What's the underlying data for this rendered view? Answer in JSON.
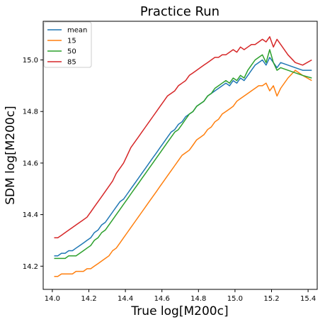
{
  "chart_data": {
    "type": "line",
    "title": "Practice Run",
    "xlabel": "True log[M200c]",
    "ylabel": "SDM log[M200c]",
    "xlim": [
      13.95,
      15.45
    ],
    "ylim": [
      14.11,
      15.15
    ],
    "xticks": [
      14.0,
      14.2,
      14.4,
      14.6,
      14.8,
      15.0,
      15.2,
      15.4
    ],
    "xtick_labels": [
      "14.0",
      "14.2",
      "14.4",
      "14.6",
      "14.8",
      "15.0",
      "15.2",
      "15.4"
    ],
    "yticks": [
      14.2,
      14.4,
      14.6,
      14.8,
      15.0
    ],
    "ytick_labels": [
      "14.2",
      "14.4",
      "14.6",
      "14.8",
      "15.0"
    ],
    "grid": false,
    "legend_position": "top-left",
    "series": [
      {
        "name": "mean",
        "color": "#1f77b4",
        "points": [
          [
            14.01,
            14.24
          ],
          [
            14.03,
            14.24
          ],
          [
            14.05,
            14.25
          ],
          [
            14.07,
            14.25
          ],
          [
            14.09,
            14.26
          ],
          [
            14.11,
            14.26
          ],
          [
            14.13,
            14.27
          ],
          [
            14.15,
            14.28
          ],
          [
            14.17,
            14.29
          ],
          [
            14.19,
            14.3
          ],
          [
            14.21,
            14.31
          ],
          [
            14.23,
            14.33
          ],
          [
            14.25,
            14.34
          ],
          [
            14.27,
            14.36
          ],
          [
            14.29,
            14.37
          ],
          [
            14.31,
            14.39
          ],
          [
            14.33,
            14.41
          ],
          [
            14.35,
            14.43
          ],
          [
            14.37,
            14.45
          ],
          [
            14.39,
            14.46
          ],
          [
            14.41,
            14.48
          ],
          [
            14.43,
            14.5
          ],
          [
            14.45,
            14.52
          ],
          [
            14.47,
            14.54
          ],
          [
            14.49,
            14.56
          ],
          [
            14.51,
            14.58
          ],
          [
            14.53,
            14.6
          ],
          [
            14.55,
            14.62
          ],
          [
            14.57,
            14.64
          ],
          [
            14.59,
            14.66
          ],
          [
            14.61,
            14.68
          ],
          [
            14.63,
            14.7
          ],
          [
            14.65,
            14.72
          ],
          [
            14.67,
            14.73
          ],
          [
            14.69,
            14.75
          ],
          [
            14.71,
            14.76
          ],
          [
            14.73,
            14.78
          ],
          [
            14.75,
            14.79
          ],
          [
            14.77,
            14.8
          ],
          [
            14.79,
            14.82
          ],
          [
            14.81,
            14.83
          ],
          [
            14.83,
            14.84
          ],
          [
            14.85,
            14.86
          ],
          [
            14.87,
            14.87
          ],
          [
            14.89,
            14.88
          ],
          [
            14.91,
            14.89
          ],
          [
            14.93,
            14.9
          ],
          [
            14.95,
            14.91
          ],
          [
            14.97,
            14.9
          ],
          [
            14.99,
            14.92
          ],
          [
            15.01,
            14.91
          ],
          [
            15.03,
            14.93
          ],
          [
            15.05,
            14.92
          ],
          [
            15.07,
            14.94
          ],
          [
            15.09,
            14.96
          ],
          [
            15.11,
            14.98
          ],
          [
            15.13,
            14.99
          ],
          [
            15.15,
            15.0
          ],
          [
            15.17,
            14.98
          ],
          [
            15.19,
            15.01
          ],
          [
            15.21,
            14.99
          ],
          [
            15.23,
            14.97
          ],
          [
            15.25,
            14.99
          ],
          [
            15.29,
            14.98
          ],
          [
            15.33,
            14.97
          ],
          [
            15.37,
            14.96
          ],
          [
            15.42,
            14.96
          ]
        ]
      },
      {
        "name": "15",
        "color": "#ff7f0e",
        "points": [
          [
            14.01,
            14.16
          ],
          [
            14.03,
            14.16
          ],
          [
            14.05,
            14.17
          ],
          [
            14.07,
            14.17
          ],
          [
            14.09,
            14.17
          ],
          [
            14.11,
            14.17
          ],
          [
            14.13,
            14.18
          ],
          [
            14.15,
            14.18
          ],
          [
            14.17,
            14.18
          ],
          [
            14.19,
            14.19
          ],
          [
            14.21,
            14.19
          ],
          [
            14.23,
            14.2
          ],
          [
            14.25,
            14.21
          ],
          [
            14.27,
            14.22
          ],
          [
            14.29,
            14.23
          ],
          [
            14.31,
            14.24
          ],
          [
            14.33,
            14.26
          ],
          [
            14.35,
            14.27
          ],
          [
            14.37,
            14.29
          ],
          [
            14.39,
            14.31
          ],
          [
            14.41,
            14.33
          ],
          [
            14.43,
            14.35
          ],
          [
            14.45,
            14.37
          ],
          [
            14.47,
            14.39
          ],
          [
            14.49,
            14.41
          ],
          [
            14.51,
            14.43
          ],
          [
            14.53,
            14.45
          ],
          [
            14.55,
            14.47
          ],
          [
            14.57,
            14.49
          ],
          [
            14.59,
            14.51
          ],
          [
            14.61,
            14.53
          ],
          [
            14.63,
            14.55
          ],
          [
            14.65,
            14.57
          ],
          [
            14.67,
            14.59
          ],
          [
            14.69,
            14.61
          ],
          [
            14.71,
            14.63
          ],
          [
            14.73,
            14.64
          ],
          [
            14.75,
            14.65
          ],
          [
            14.77,
            14.67
          ],
          [
            14.79,
            14.69
          ],
          [
            14.81,
            14.7
          ],
          [
            14.83,
            14.71
          ],
          [
            14.85,
            14.73
          ],
          [
            14.87,
            14.74
          ],
          [
            14.89,
            14.76
          ],
          [
            14.91,
            14.77
          ],
          [
            14.93,
            14.79
          ],
          [
            14.95,
            14.8
          ],
          [
            14.97,
            14.81
          ],
          [
            14.99,
            14.82
          ],
          [
            15.01,
            14.84
          ],
          [
            15.03,
            14.85
          ],
          [
            15.05,
            14.86
          ],
          [
            15.07,
            14.87
          ],
          [
            15.09,
            14.88
          ],
          [
            15.11,
            14.89
          ],
          [
            15.13,
            14.9
          ],
          [
            15.15,
            14.9
          ],
          [
            15.17,
            14.91
          ],
          [
            15.19,
            14.88
          ],
          [
            15.21,
            14.9
          ],
          [
            15.23,
            14.86
          ],
          [
            15.25,
            14.89
          ],
          [
            15.29,
            14.93
          ],
          [
            15.33,
            14.96
          ],
          [
            15.37,
            14.94
          ],
          [
            15.42,
            14.92
          ]
        ]
      },
      {
        "name": "50",
        "color": "#2ca02c",
        "points": [
          [
            14.01,
            14.23
          ],
          [
            14.03,
            14.23
          ],
          [
            14.05,
            14.23
          ],
          [
            14.07,
            14.23
          ],
          [
            14.09,
            14.24
          ],
          [
            14.11,
            14.24
          ],
          [
            14.13,
            14.24
          ],
          [
            14.15,
            14.25
          ],
          [
            14.17,
            14.26
          ],
          [
            14.19,
            14.27
          ],
          [
            14.21,
            14.28
          ],
          [
            14.23,
            14.3
          ],
          [
            14.25,
            14.31
          ],
          [
            14.27,
            14.33
          ],
          [
            14.29,
            14.34
          ],
          [
            14.31,
            14.36
          ],
          [
            14.33,
            14.38
          ],
          [
            14.35,
            14.4
          ],
          [
            14.37,
            14.42
          ],
          [
            14.39,
            14.44
          ],
          [
            14.41,
            14.46
          ],
          [
            14.43,
            14.48
          ],
          [
            14.45,
            14.5
          ],
          [
            14.47,
            14.52
          ],
          [
            14.49,
            14.54
          ],
          [
            14.51,
            14.56
          ],
          [
            14.53,
            14.58
          ],
          [
            14.55,
            14.6
          ],
          [
            14.57,
            14.62
          ],
          [
            14.59,
            14.64
          ],
          [
            14.61,
            14.66
          ],
          [
            14.63,
            14.68
          ],
          [
            14.65,
            14.7
          ],
          [
            14.67,
            14.72
          ],
          [
            14.69,
            14.73
          ],
          [
            14.71,
            14.75
          ],
          [
            14.73,
            14.77
          ],
          [
            14.75,
            14.79
          ],
          [
            14.77,
            14.8
          ],
          [
            14.79,
            14.82
          ],
          [
            14.81,
            14.83
          ],
          [
            14.83,
            14.84
          ],
          [
            14.85,
            14.86
          ],
          [
            14.87,
            14.87
          ],
          [
            14.89,
            14.89
          ],
          [
            14.91,
            14.9
          ],
          [
            14.93,
            14.91
          ],
          [
            14.95,
            14.92
          ],
          [
            14.97,
            14.91
          ],
          [
            14.99,
            14.93
          ],
          [
            15.01,
            14.92
          ],
          [
            15.03,
            14.94
          ],
          [
            15.05,
            14.93
          ],
          [
            15.07,
            14.96
          ],
          [
            15.09,
            14.98
          ],
          [
            15.11,
            15.0
          ],
          [
            15.13,
            15.01
          ],
          [
            15.15,
            15.02
          ],
          [
            15.17,
            14.99
          ],
          [
            15.19,
            15.04
          ],
          [
            15.21,
            14.99
          ],
          [
            15.23,
            14.96
          ],
          [
            15.25,
            14.97
          ],
          [
            15.29,
            14.96
          ],
          [
            15.33,
            14.95
          ],
          [
            15.37,
            14.94
          ],
          [
            15.42,
            14.93
          ]
        ]
      },
      {
        "name": "85",
        "color": "#d62728",
        "points": [
          [
            14.01,
            14.31
          ],
          [
            14.03,
            14.31
          ],
          [
            14.05,
            14.32
          ],
          [
            14.07,
            14.33
          ],
          [
            14.09,
            14.34
          ],
          [
            14.11,
            14.35
          ],
          [
            14.13,
            14.36
          ],
          [
            14.15,
            14.37
          ],
          [
            14.17,
            14.38
          ],
          [
            14.19,
            14.39
          ],
          [
            14.21,
            14.41
          ],
          [
            14.23,
            14.43
          ],
          [
            14.25,
            14.45
          ],
          [
            14.27,
            14.47
          ],
          [
            14.29,
            14.49
          ],
          [
            14.31,
            14.51
          ],
          [
            14.33,
            14.53
          ],
          [
            14.35,
            14.56
          ],
          [
            14.37,
            14.58
          ],
          [
            14.39,
            14.6
          ],
          [
            14.41,
            14.63
          ],
          [
            14.43,
            14.66
          ],
          [
            14.45,
            14.68
          ],
          [
            14.47,
            14.7
          ],
          [
            14.49,
            14.72
          ],
          [
            14.51,
            14.74
          ],
          [
            14.53,
            14.76
          ],
          [
            14.55,
            14.78
          ],
          [
            14.57,
            14.8
          ],
          [
            14.59,
            14.82
          ],
          [
            14.61,
            14.84
          ],
          [
            14.63,
            14.86
          ],
          [
            14.65,
            14.87
          ],
          [
            14.67,
            14.88
          ],
          [
            14.69,
            14.9
          ],
          [
            14.71,
            14.91
          ],
          [
            14.73,
            14.92
          ],
          [
            14.75,
            14.94
          ],
          [
            14.77,
            14.95
          ],
          [
            14.79,
            14.96
          ],
          [
            14.81,
            14.97
          ],
          [
            14.83,
            14.98
          ],
          [
            14.85,
            14.99
          ],
          [
            14.87,
            15.0
          ],
          [
            14.89,
            15.01
          ],
          [
            14.91,
            15.01
          ],
          [
            14.93,
            15.02
          ],
          [
            14.95,
            15.02
          ],
          [
            14.97,
            15.03
          ],
          [
            14.99,
            15.04
          ],
          [
            15.01,
            15.03
          ],
          [
            15.03,
            15.05
          ],
          [
            15.05,
            15.04
          ],
          [
            15.07,
            15.05
          ],
          [
            15.09,
            15.06
          ],
          [
            15.11,
            15.06
          ],
          [
            15.13,
            15.07
          ],
          [
            15.15,
            15.08
          ],
          [
            15.17,
            15.07
          ],
          [
            15.19,
            15.09
          ],
          [
            15.21,
            15.05
          ],
          [
            15.23,
            15.08
          ],
          [
            15.25,
            15.06
          ],
          [
            15.29,
            15.02
          ],
          [
            15.33,
            14.99
          ],
          [
            15.37,
            14.98
          ],
          [
            15.42,
            15.0
          ]
        ]
      }
    ]
  }
}
